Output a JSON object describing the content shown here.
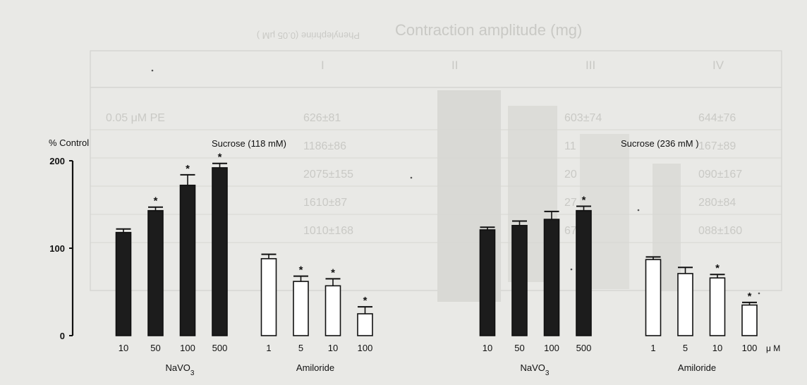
{
  "chart_data": [
    {
      "type": "bar",
      "ylabel": "% Control",
      "title": "Sucrose (118 mM)",
      "ylim": [
        0,
        200
      ],
      "yticks": [
        0,
        100,
        200
      ],
      "groups": [
        {
          "label": "NaVO",
          "label_sub": "3",
          "fill": "#1c1c1c",
          "categories": [
            "10",
            "50",
            "100",
            "500"
          ],
          "values": [
            118,
            143,
            172,
            192
          ],
          "errors": [
            4,
            4,
            12,
            5
          ],
          "significant": [
            false,
            true,
            true,
            true
          ]
        },
        {
          "label": "Amiloride",
          "label_sub": "",
          "fill": "#ffffff",
          "categories": [
            "1",
            "5",
            "10",
            "100"
          ],
          "values": [
            88,
            62,
            57,
            25
          ],
          "errors": [
            5,
            6,
            8,
            8
          ],
          "significant": [
            false,
            true,
            true,
            true
          ]
        }
      ]
    },
    {
      "type": "bar",
      "title": "Sucrose (236 mM )",
      "ylim": [
        0,
        200
      ],
      "unit": "μ M",
      "groups": [
        {
          "label": "NaVO",
          "label_sub": "3",
          "fill": "#1c1c1c",
          "categories": [
            "10",
            "50",
            "100",
            "500"
          ],
          "values": [
            121,
            126,
            133,
            143
          ],
          "errors": [
            3,
            5,
            9,
            5
          ],
          "significant": [
            false,
            false,
            false,
            true
          ]
        },
        {
          "label": "Amiloride",
          "label_sub": "",
          "fill": "#ffffff",
          "categories": [
            "1",
            "5",
            "10",
            "100"
          ],
          "values": [
            87,
            71,
            66,
            35
          ],
          "errors": [
            3,
            7,
            4,
            3
          ],
          "significant": [
            false,
            false,
            true,
            true
          ]
        }
      ]
    }
  ],
  "significance_marker": "*",
  "bleed_through": {
    "title": "Contraction amplitude (mg)",
    "phenylephrine": "Phenylephrine (0.05 μM )",
    "columns": [
      "I",
      "II",
      "III",
      "IV"
    ],
    "rows": [
      [
        "0.05 μM PE",
        "626±81",
        "",
        "603±74",
        "644±76"
      ],
      [
        "",
        "1186±86",
        "",
        "11",
        "167±89"
      ],
      [
        "",
        "2075±155",
        "",
        "20",
        "090±167"
      ],
      [
        "",
        "1610±87",
        "",
        "27",
        "280±84"
      ],
      [
        "",
        "1010±168",
        "",
        "67",
        "088±160"
      ]
    ]
  }
}
